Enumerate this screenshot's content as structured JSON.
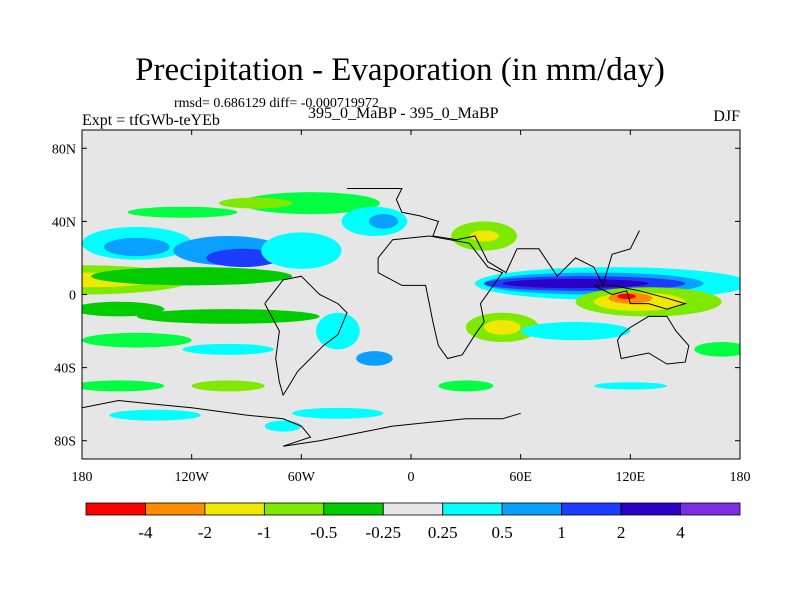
{
  "title": "Precipitation - Evaporation (in mm/day)",
  "stats_line": "rmsd= 0.686129 diff= -0.000719972",
  "experiment_label": "Expt = tfGWb-teYEb",
  "comparison_label": "395_0_MaBP - 395_0_MaBP",
  "season_label": "DJF",
  "map": {
    "lon_range": [
      -180,
      180
    ],
    "lat_range": [
      -90,
      90
    ],
    "lat_ticks": [
      {
        "value": 80,
        "label": "80N"
      },
      {
        "value": 40,
        "label": "40N"
      },
      {
        "value": 0,
        "label": "0"
      },
      {
        "value": -40,
        "label": "40S"
      },
      {
        "value": -80,
        "label": "80S"
      }
    ],
    "lon_ticks": [
      {
        "value": -180,
        "label": "180"
      },
      {
        "value": -120,
        "label": "120W"
      },
      {
        "value": -60,
        "label": "60W"
      },
      {
        "value": 0,
        "label": "0"
      },
      {
        "value": 60,
        "label": "60E"
      },
      {
        "value": 120,
        "label": "120E"
      },
      {
        "value": 180,
        "label": "180"
      }
    ],
    "background_color": "#e6e6e6",
    "blobs": [
      {
        "lon": -180,
        "lat": 8,
        "rx": 60,
        "ry": 8,
        "color": "#7fea00"
      },
      {
        "lon": -175,
        "lat": 8,
        "rx": 35,
        "ry": 4,
        "color": "#f0e800"
      },
      {
        "lon": -120,
        "lat": 10,
        "rx": 55,
        "ry": 5,
        "color": "#00cc00"
      },
      {
        "lon": -160,
        "lat": -8,
        "rx": 25,
        "ry": 4,
        "color": "#00cc00"
      },
      {
        "lon": -100,
        "lat": -12,
        "rx": 50,
        "ry": 4,
        "color": "#00cc00"
      },
      {
        "lon": -150,
        "lat": 28,
        "rx": 30,
        "ry": 9,
        "color": "#00ffff"
      },
      {
        "lon": -150,
        "lat": 26,
        "rx": 18,
        "ry": 5,
        "color": "#0aa0ff"
      },
      {
        "lon": -100,
        "lat": 24,
        "rx": 30,
        "ry": 8,
        "color": "#0aa0ff"
      },
      {
        "lon": -92,
        "lat": 20,
        "rx": 20,
        "ry": 5,
        "color": "#1e3cff"
      },
      {
        "lon": -60,
        "lat": 24,
        "rx": 22,
        "ry": 10,
        "color": "#00ffff"
      },
      {
        "lon": -55,
        "lat": 50,
        "rx": 38,
        "ry": 6,
        "color": "#00ff40"
      },
      {
        "lon": -85,
        "lat": 50,
        "rx": 20,
        "ry": 3,
        "color": "#7fea00"
      },
      {
        "lon": -125,
        "lat": 45,
        "rx": 30,
        "ry": 3,
        "color": "#00ff40"
      },
      {
        "lon": -20,
        "lat": 40,
        "rx": 18,
        "ry": 8,
        "color": "#00ffff"
      },
      {
        "lon": -15,
        "lat": 40,
        "rx": 8,
        "ry": 4,
        "color": "#0aa0ff"
      },
      {
        "lon": 40,
        "lat": 32,
        "rx": 18,
        "ry": 8,
        "color": "#7fea00"
      },
      {
        "lon": 40,
        "lat": 32,
        "rx": 8,
        "ry": 3,
        "color": "#f0e800"
      },
      {
        "lon": 110,
        "lat": 6,
        "rx": 75,
        "ry": 9,
        "color": "#00ffff"
      },
      {
        "lon": 100,
        "lat": 6,
        "rx": 60,
        "ry": 6,
        "color": "#0aa0ff"
      },
      {
        "lon": 95,
        "lat": 6,
        "rx": 55,
        "ry": 4,
        "color": "#1e3cff"
      },
      {
        "lon": 90,
        "lat": 6,
        "rx": 40,
        "ry": 2.5,
        "color": "#2d00c8"
      },
      {
        "lon": 130,
        "lat": -4,
        "rx": 40,
        "ry": 8,
        "color": "#7fea00"
      },
      {
        "lon": 125,
        "lat": -4,
        "rx": 25,
        "ry": 5,
        "color": "#f0e800"
      },
      {
        "lon": 120,
        "lat": -2,
        "rx": 12,
        "ry": 3,
        "color": "#ff8c00"
      },
      {
        "lon": 118,
        "lat": -1,
        "rx": 5,
        "ry": 1.5,
        "color": "#ff0000"
      },
      {
        "lon": 50,
        "lat": -18,
        "rx": 20,
        "ry": 8,
        "color": "#7fea00"
      },
      {
        "lon": 50,
        "lat": -18,
        "rx": 10,
        "ry": 4,
        "color": "#f0e800"
      },
      {
        "lon": 90,
        "lat": -20,
        "rx": 30,
        "ry": 5,
        "color": "#00ffff"
      },
      {
        "lon": -150,
        "lat": -25,
        "rx": 30,
        "ry": 4,
        "color": "#00ff40"
      },
      {
        "lon": -100,
        "lat": -30,
        "rx": 25,
        "ry": 3,
        "color": "#00ffff"
      },
      {
        "lon": -40,
        "lat": -20,
        "rx": 12,
        "ry": 10,
        "color": "#00ffff"
      },
      {
        "lon": -20,
        "lat": -35,
        "rx": 10,
        "ry": 4,
        "color": "#0aa0ff"
      },
      {
        "lon": -160,
        "lat": -50,
        "rx": 25,
        "ry": 3,
        "color": "#00ff40"
      },
      {
        "lon": -100,
        "lat": -50,
        "rx": 20,
        "ry": 3,
        "color": "#7fea00"
      },
      {
        "lon": 30,
        "lat": -50,
        "rx": 15,
        "ry": 3,
        "color": "#00ff40"
      },
      {
        "lon": 120,
        "lat": -50,
        "rx": 20,
        "ry": 2,
        "color": "#00ffff"
      },
      {
        "lon": -140,
        "lat": -66,
        "rx": 25,
        "ry": 3,
        "color": "#00ffff"
      },
      {
        "lon": -40,
        "lat": -65,
        "rx": 25,
        "ry": 3,
        "color": "#00ffff"
      },
      {
        "lon": -70,
        "lat": -72,
        "rx": 10,
        "ry": 3,
        "color": "#00ffff"
      },
      {
        "lon": 170,
        "lat": -30,
        "rx": 15,
        "ry": 4,
        "color": "#00ff40"
      }
    ],
    "coastlines": [
      [
        [
          -180,
          -62
        ],
        [
          -160,
          -58
        ],
        [
          -140,
          -60
        ],
        [
          -120,
          -62
        ],
        [
          -90,
          -66
        ],
        [
          -70,
          -68
        ],
        [
          -60,
          -72
        ],
        [
          -55,
          -78
        ],
        [
          -70,
          -83
        ],
        [
          -50,
          -80
        ],
        [
          -30,
          -76
        ],
        [
          -10,
          -72
        ],
        [
          10,
          -70
        ],
        [
          30,
          -68
        ],
        [
          50,
          -68
        ],
        [
          60,
          -65
        ]
      ],
      [
        [
          -35,
          58
        ],
        [
          -5,
          58
        ],
        [
          -8,
          52
        ],
        [
          -5,
          45
        ],
        [
          5,
          43
        ],
        [
          15,
          40
        ],
        [
          12,
          32
        ],
        [
          25,
          30
        ],
        [
          35,
          32
        ],
        [
          42,
          18
        ],
        [
          52,
          12
        ],
        [
          58,
          25
        ],
        [
          70,
          25
        ],
        [
          80,
          10
        ],
        [
          90,
          20
        ],
        [
          100,
          15
        ],
        [
          105,
          5
        ],
        [
          110,
          22
        ],
        [
          120,
          25
        ],
        [
          125,
          35
        ]
      ],
      [
        [
          -80,
          -5
        ],
        [
          -70,
          8
        ],
        [
          -60,
          10
        ],
        [
          -50,
          0
        ],
        [
          -40,
          -5
        ],
        [
          -35,
          -10
        ],
        [
          -40,
          -22
        ],
        [
          -48,
          -28
        ],
        [
          -55,
          -35
        ],
        [
          -62,
          -42
        ],
        [
          -68,
          -52
        ],
        [
          -70,
          -55
        ],
        [
          -72,
          -48
        ],
        [
          -74,
          -35
        ],
        [
          -72,
          -20
        ],
        [
          -80,
          -5
        ]
      ],
      [
        [
          -18,
          12
        ],
        [
          -5,
          5
        ],
        [
          8,
          5
        ],
        [
          10,
          -5
        ],
        [
          12,
          -15
        ],
        [
          15,
          -28
        ],
        [
          20,
          -35
        ],
        [
          28,
          -33
        ],
        [
          35,
          -22
        ],
        [
          40,
          -15
        ],
        [
          38,
          -5
        ],
        [
          45,
          5
        ],
        [
          50,
          12
        ],
        [
          42,
          15
        ],
        [
          32,
          28
        ],
        [
          10,
          32
        ],
        [
          -10,
          30
        ],
        [
          -18,
          20
        ],
        [
          -18,
          12
        ]
      ],
      [
        [
          115,
          -22
        ],
        [
          120,
          -18
        ],
        [
          130,
          -12
        ],
        [
          140,
          -12
        ],
        [
          145,
          -20
        ],
        [
          152,
          -28
        ],
        [
          150,
          -37
        ],
        [
          140,
          -38
        ],
        [
          130,
          -32
        ],
        [
          115,
          -35
        ],
        [
          113,
          -25
        ],
        [
          115,
          -22
        ]
      ],
      [
        [
          100,
          5
        ],
        [
          110,
          0
        ],
        [
          118,
          2
        ],
        [
          120,
          -5
        ],
        [
          130,
          -5
        ],
        [
          140,
          -8
        ],
        [
          150,
          -5
        ],
        [
          140,
          -2
        ],
        [
          125,
          2
        ],
        [
          110,
          5
        ],
        [
          100,
          5
        ]
      ]
    ]
  },
  "colorbar": {
    "colors": [
      "#ff0000",
      "#ff8c00",
      "#f0e800",
      "#7fea00",
      "#00cc00",
      "#e6e6e6",
      "#00ffff",
      "#0aa0ff",
      "#1e3cff",
      "#2d00c8",
      "#7d2ee8"
    ],
    "labels": [
      "-4",
      "-2",
      "-1",
      "-0.5",
      "-0.25",
      "0.25",
      "0.5",
      "1",
      "2",
      "4"
    ]
  }
}
